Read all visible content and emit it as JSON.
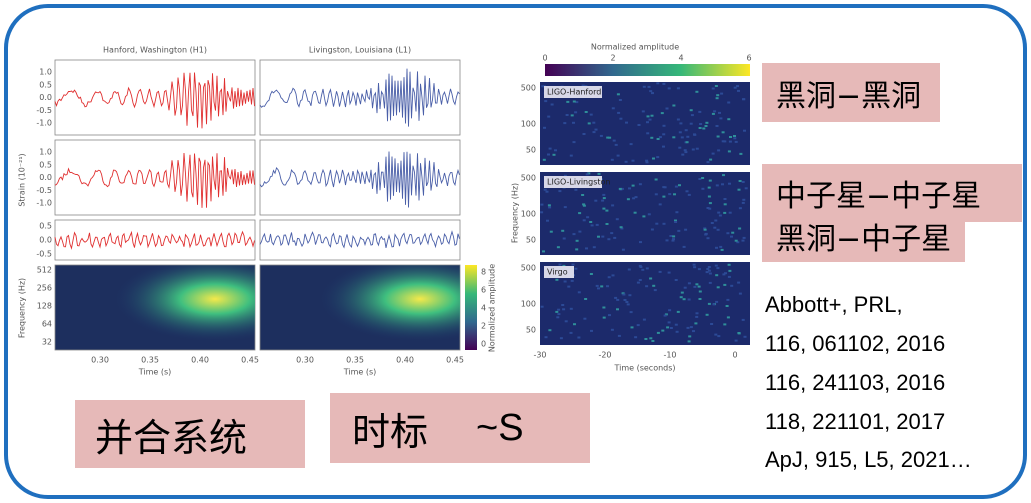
{
  "figure_left": {
    "columns": [
      "Hanford, Washington (H1)",
      "Livingston, Louisiana (L1)"
    ],
    "strain_label": "Strain (10⁻²¹)",
    "frequency_label": "Frequency (Hz)",
    "colorbar_label": "Normalized amplitude",
    "x_label": "Time (s)",
    "x_ticks": [
      "0.30",
      "0.35",
      "0.40",
      "0.45"
    ],
    "strain_ticks": [
      "1.0",
      "0.5",
      "0.0",
      "-0.5",
      "-1.0"
    ],
    "residual_ticks": [
      "0.5",
      "0.0",
      "-0.5"
    ],
    "freq_ticks": [
      "512",
      "256",
      "128",
      "64",
      "32"
    ],
    "colorbar_ticks": [
      "8",
      "6",
      "4",
      "2",
      "0"
    ]
  },
  "figure_right": {
    "colorbar_label": "Normalized amplitude",
    "colorbar_ticks": [
      "0",
      "2",
      "4",
      "6"
    ],
    "panels": [
      "LIGO-Hanford",
      "LIGO-Livingston",
      "Virgo"
    ],
    "y_label": "Frequency (Hz)",
    "y_ticks": [
      "500",
      "100",
      "50"
    ],
    "x_label": "Time (seconds)",
    "x_ticks": [
      "-30",
      "-20",
      "-10",
      "0"
    ]
  },
  "tags": [
    "黑洞−黑洞",
    "中子星−中子星",
    "黑洞−中子星"
  ],
  "bottom": {
    "system": "并合系统",
    "timescale": "时标",
    "timescale_value": "~S"
  },
  "references": [
    "Abbott+, PRL,",
    "116, 061102, 2016",
    "116, 241103, 2016",
    "118, 221101, 2017",
    "ApJ, 915, L5, 2021…"
  ]
}
